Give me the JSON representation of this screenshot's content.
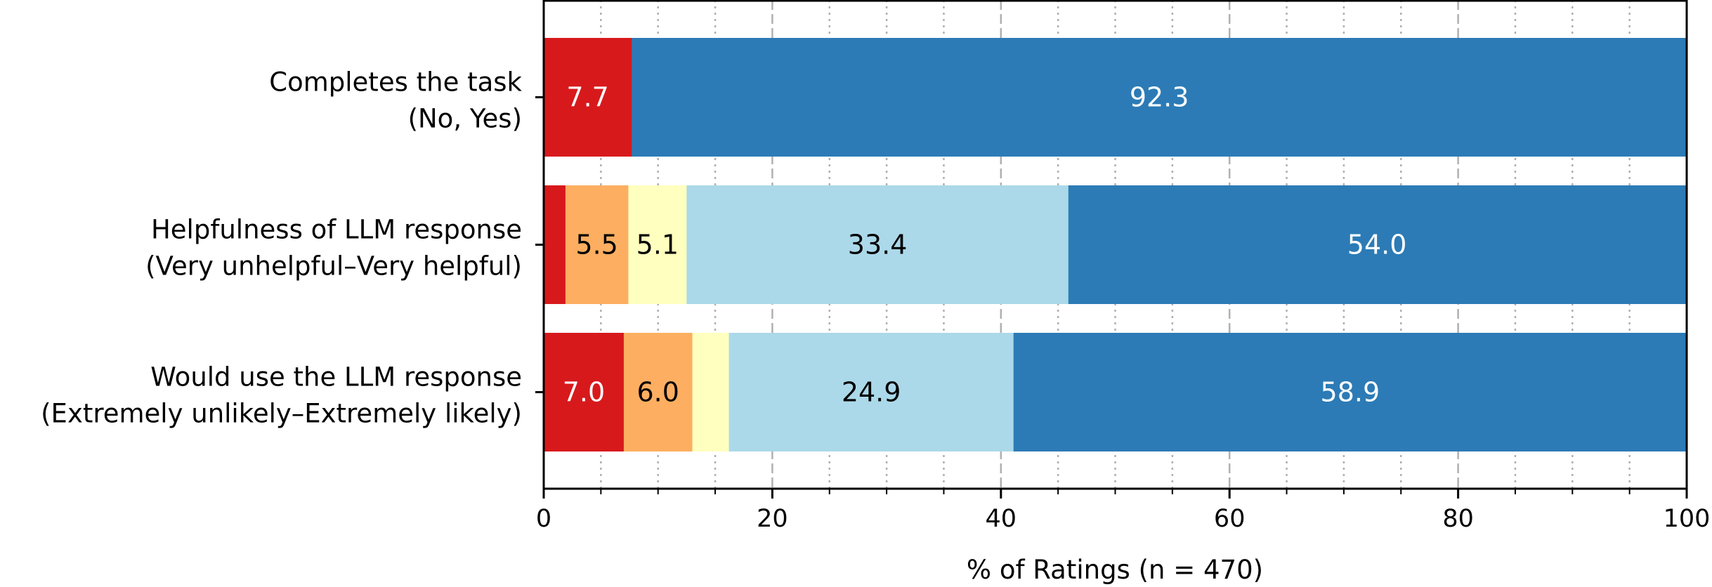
{
  "chart_data": {
    "type": "bar",
    "orientation": "horizontal",
    "stacked": true,
    "categories": [
      {
        "line1": "Completes the task",
        "line2": "(No, Yes)"
      },
      {
        "line1": "Helpfulness of LLM response",
        "line2": "(Very unhelpful–Very helpful)"
      },
      {
        "line1": "Would use the LLM response",
        "line2": "(Extremely unlikely–Extremely likely)"
      }
    ],
    "rows": [
      {
        "segments": [
          {
            "value": 7.7,
            "label": "7.7",
            "color": "#d7191c",
            "text_color": "#ffffff"
          },
          {
            "value": 92.3,
            "label": "92.3",
            "color": "#2c7bb6",
            "text_color": "#ffffff"
          }
        ]
      },
      {
        "segments": [
          {
            "value": 1.9,
            "label": "",
            "color": "#d7191c",
            "text_color": "#ffffff"
          },
          {
            "value": 5.5,
            "label": "5.5",
            "color": "#fdae61",
            "text_color": "#000000"
          },
          {
            "value": 5.1,
            "label": "5.1",
            "color": "#ffffbf",
            "text_color": "#000000"
          },
          {
            "value": 33.4,
            "label": "33.4",
            "color": "#abd9e9",
            "text_color": "#000000"
          },
          {
            "value": 54.0,
            "label": "54.0",
            "color": "#2c7bb6",
            "text_color": "#ffffff"
          }
        ]
      },
      {
        "segments": [
          {
            "value": 7.0,
            "label": "7.0",
            "color": "#d7191c",
            "text_color": "#ffffff"
          },
          {
            "value": 6.0,
            "label": "6.0",
            "color": "#fdae61",
            "text_color": "#000000"
          },
          {
            "value": 3.2,
            "label": "",
            "color": "#ffffbf",
            "text_color": "#000000"
          },
          {
            "value": 24.9,
            "label": "24.9",
            "color": "#abd9e9",
            "text_color": "#000000"
          },
          {
            "value": 58.9,
            "label": "58.9",
            "color": "#2c7bb6",
            "text_color": "#ffffff"
          }
        ]
      }
    ],
    "xlabel": "% of Ratings (n = 470)",
    "xlim": [
      0,
      100
    ],
    "xticks": [
      "0",
      "20",
      "40",
      "60",
      "80",
      "100"
    ],
    "grid": {
      "major": "dashed every 20",
      "minor": "dotted every 5"
    },
    "legend": "none"
  }
}
